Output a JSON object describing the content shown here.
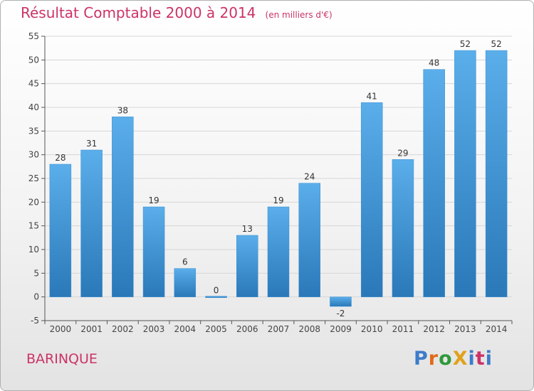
{
  "title": "Résultat Comptable 2000 à 2014",
  "unit": "(en milliers d'€)",
  "place": "BARINQUE",
  "logo": {
    "text": "ProXiti",
    "colors": [
      "#3d7cc9",
      "#e06a1b",
      "#2f9a3a",
      "#e0a21b",
      "#3d7cc9",
      "#cc3366",
      "#3d7cc9"
    ]
  },
  "colors": {
    "bar": "#4a9ee0",
    "axis": "#555555",
    "grid": "#d6d6d6",
    "title": "#cc3366"
  },
  "chart_data": {
    "type": "bar",
    "categories": [
      "2000",
      "2001",
      "2002",
      "2003",
      "2004",
      "2005",
      "2006",
      "2007",
      "2008",
      "2009",
      "2010",
      "2011",
      "2012",
      "2013",
      "2014"
    ],
    "values": [
      28,
      31,
      38,
      19,
      6,
      0,
      13,
      19,
      24,
      -2,
      41,
      29,
      48,
      52,
      52
    ],
    "data_labels": [
      "28",
      "31",
      "38",
      "19",
      "6",
      "0",
      "13",
      "19",
      "24",
      "-2",
      "41",
      "29",
      "48",
      "52",
      "52"
    ],
    "ylim": [
      -5,
      55
    ],
    "yticks": [
      -5,
      0,
      5,
      10,
      15,
      20,
      25,
      30,
      35,
      40,
      45,
      50,
      55
    ],
    "grid": true
  }
}
